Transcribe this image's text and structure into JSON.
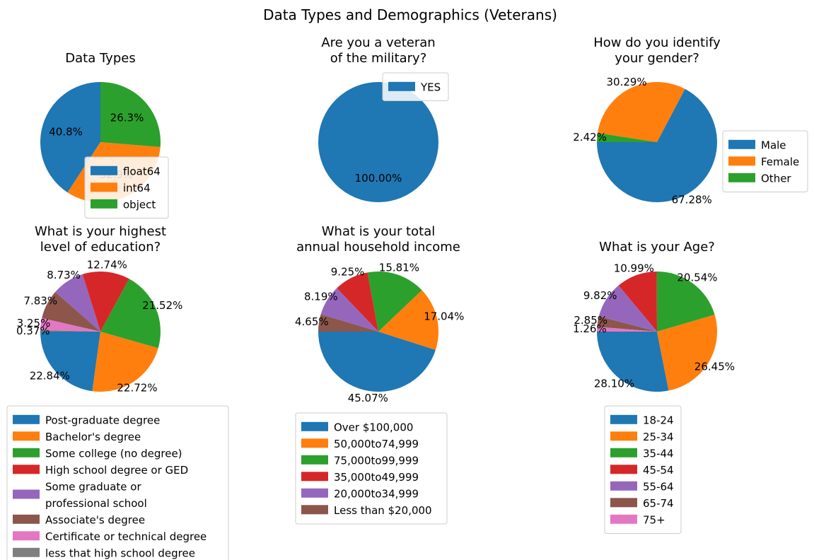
{
  "suptitle": "Data Types and Demographics (Veterans)",
  "chart_data": [
    {
      "type": "pie",
      "title": "Data Types",
      "labels": [
        "float64",
        "int64",
        "object"
      ],
      "values": [
        40.8,
        32.9,
        26.3
      ],
      "autopct": [
        "40.8%",
        "32.9%",
        "26.3%"
      ],
      "colors": [
        "#1f77b4",
        "#ff7f0e",
        "#2ca02c"
      ],
      "legend": [
        "float64",
        "int64",
        "object"
      ],
      "legend_loc": "lower-right"
    },
    {
      "type": "pie",
      "title": "Are you a veteran\nof the military?",
      "labels": [
        "YES"
      ],
      "values": [
        100.0
      ],
      "autopct": [
        "100.00%"
      ],
      "colors": [
        "#1f77b4"
      ],
      "legend": [
        "YES"
      ],
      "legend_loc": "upper-right"
    },
    {
      "type": "pie",
      "title": "How do you identify\nyour gender?",
      "labels": [
        "Male",
        "Female",
        "Other"
      ],
      "values": [
        67.28,
        30.29,
        2.42
      ],
      "autopct": [
        "67.28%",
        "30.29%",
        "2.42%"
      ],
      "colors": [
        "#1f77b4",
        "#ff7f0e",
        "#2ca02c"
      ],
      "legend": [
        "Male",
        "Female",
        "Other"
      ],
      "legend_loc": "right"
    },
    {
      "type": "pie",
      "title": "What is your highest\nlevel of education?",
      "labels": [
        "Post-graduate degree",
        "Bachelor's degree",
        "Some college (no degree)",
        "High school degree or GED",
        "Some graduate or\nprofessional school",
        "Associate's degree",
        "Certificate or technical degree",
        "less that high school degree"
      ],
      "values": [
        22.84,
        22.72,
        21.52,
        12.74,
        8.73,
        7.83,
        3.25,
        0.37
      ],
      "autopct": [
        "22.84%",
        "22.72%",
        "21.52%",
        "12.74%",
        "8.73%",
        "7.83%",
        "3.25%",
        "0.37%"
      ],
      "colors": [
        "#1f77b4",
        "#ff7f0e",
        "#2ca02c",
        "#d62728",
        "#9467bd",
        "#8c564b",
        "#e377c2",
        "#7f7f7f"
      ],
      "legend": [
        "Post-graduate degree",
        "Bachelor's degree",
        "Some college (no degree)",
        "High school degree or GED",
        "Some graduate or\nprofessional school",
        "Associate's degree",
        "Certificate or technical degree",
        "less that high school degree"
      ],
      "legend_loc": "below"
    },
    {
      "type": "pie",
      "title": "What is your total\nannual household income",
      "labels": [
        "Over $100,000",
        "50,000to74,999",
        "75,000to99,999",
        "35,000to49,999",
        "20,000to34,999",
        "Less than $20,000"
      ],
      "values": [
        45.07,
        17.04,
        15.81,
        9.25,
        8.19,
        4.65
      ],
      "autopct": [
        "45.07%",
        "17.04%",
        "15.81%",
        "9.25%",
        "8.19%",
        "4.65%"
      ],
      "colors": [
        "#1f77b4",
        "#ff7f0e",
        "#2ca02c",
        "#d62728",
        "#9467bd",
        "#8c564b"
      ],
      "legend": [
        "Over $100,000",
        "50,000to74,999",
        "75,000to99,999",
        "35,000to49,999",
        "20,000to34,999",
        "Less than $20,000"
      ],
      "legend_loc": "below"
    },
    {
      "type": "pie",
      "title": "What is your Age?",
      "labels": [
        "18-24",
        "25-34",
        "35-44",
        "45-54",
        "55-64",
        "65-74",
        "75+"
      ],
      "values": [
        28.1,
        26.45,
        20.54,
        10.99,
        9.82,
        2.85,
        1.26
      ],
      "autopct": [
        "28.10%",
        "26.45%",
        "20.54%",
        "10.99%",
        "9.82%",
        "2.85%",
        "1.26%"
      ],
      "colors": [
        "#1f77b4",
        "#ff7f0e",
        "#2ca02c",
        "#d62728",
        "#9467bd",
        "#8c564b",
        "#e377c2"
      ],
      "legend": [
        "18-24",
        "25-34",
        "35-44",
        "45-54",
        "55-64",
        "65-74",
        "75+"
      ],
      "legend_loc": "below"
    }
  ]
}
